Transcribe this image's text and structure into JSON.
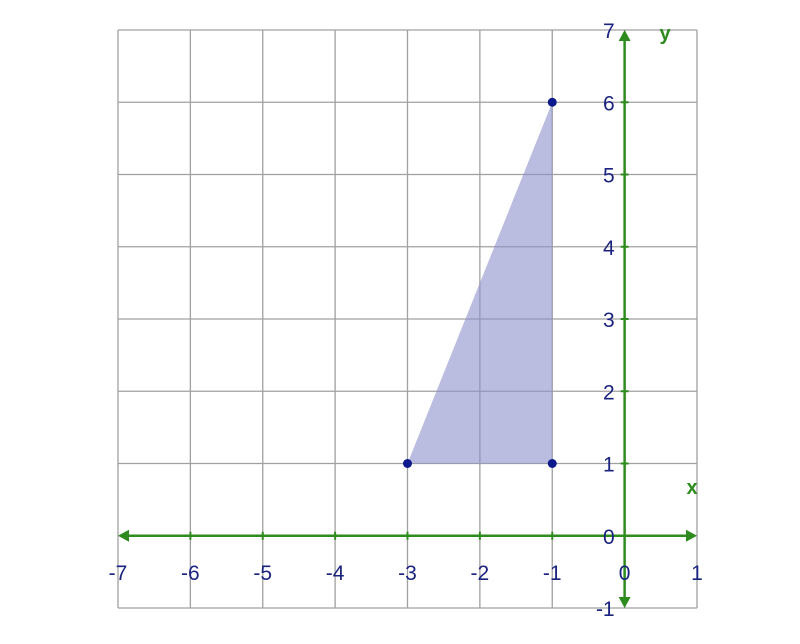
{
  "chart_data": {
    "type": "scatter",
    "title": "",
    "xlabel": "x",
    "ylabel": "y",
    "xlim": [
      -7,
      1
    ],
    "ylim": [
      -1,
      7
    ],
    "grid": true,
    "x_ticks": [
      "-7",
      "-6",
      "-5",
      "-4",
      "-3",
      "-2",
      "-1",
      "0",
      "1"
    ],
    "y_ticks": [
      "7",
      "6",
      "5",
      "4",
      "3",
      "2",
      "1",
      "0",
      "-1"
    ],
    "shape": {
      "kind": "triangle",
      "vertices": [
        {
          "x": -3,
          "y": 1
        },
        {
          "x": -1,
          "y": 1
        },
        {
          "x": -1,
          "y": 6
        }
      ]
    },
    "colors": {
      "grid": "#a0a0a0",
      "axis": "#2e8b1e",
      "tick_text": "#1a237e",
      "point": "#0d1a8c",
      "fill": "#8c8fcc"
    }
  }
}
